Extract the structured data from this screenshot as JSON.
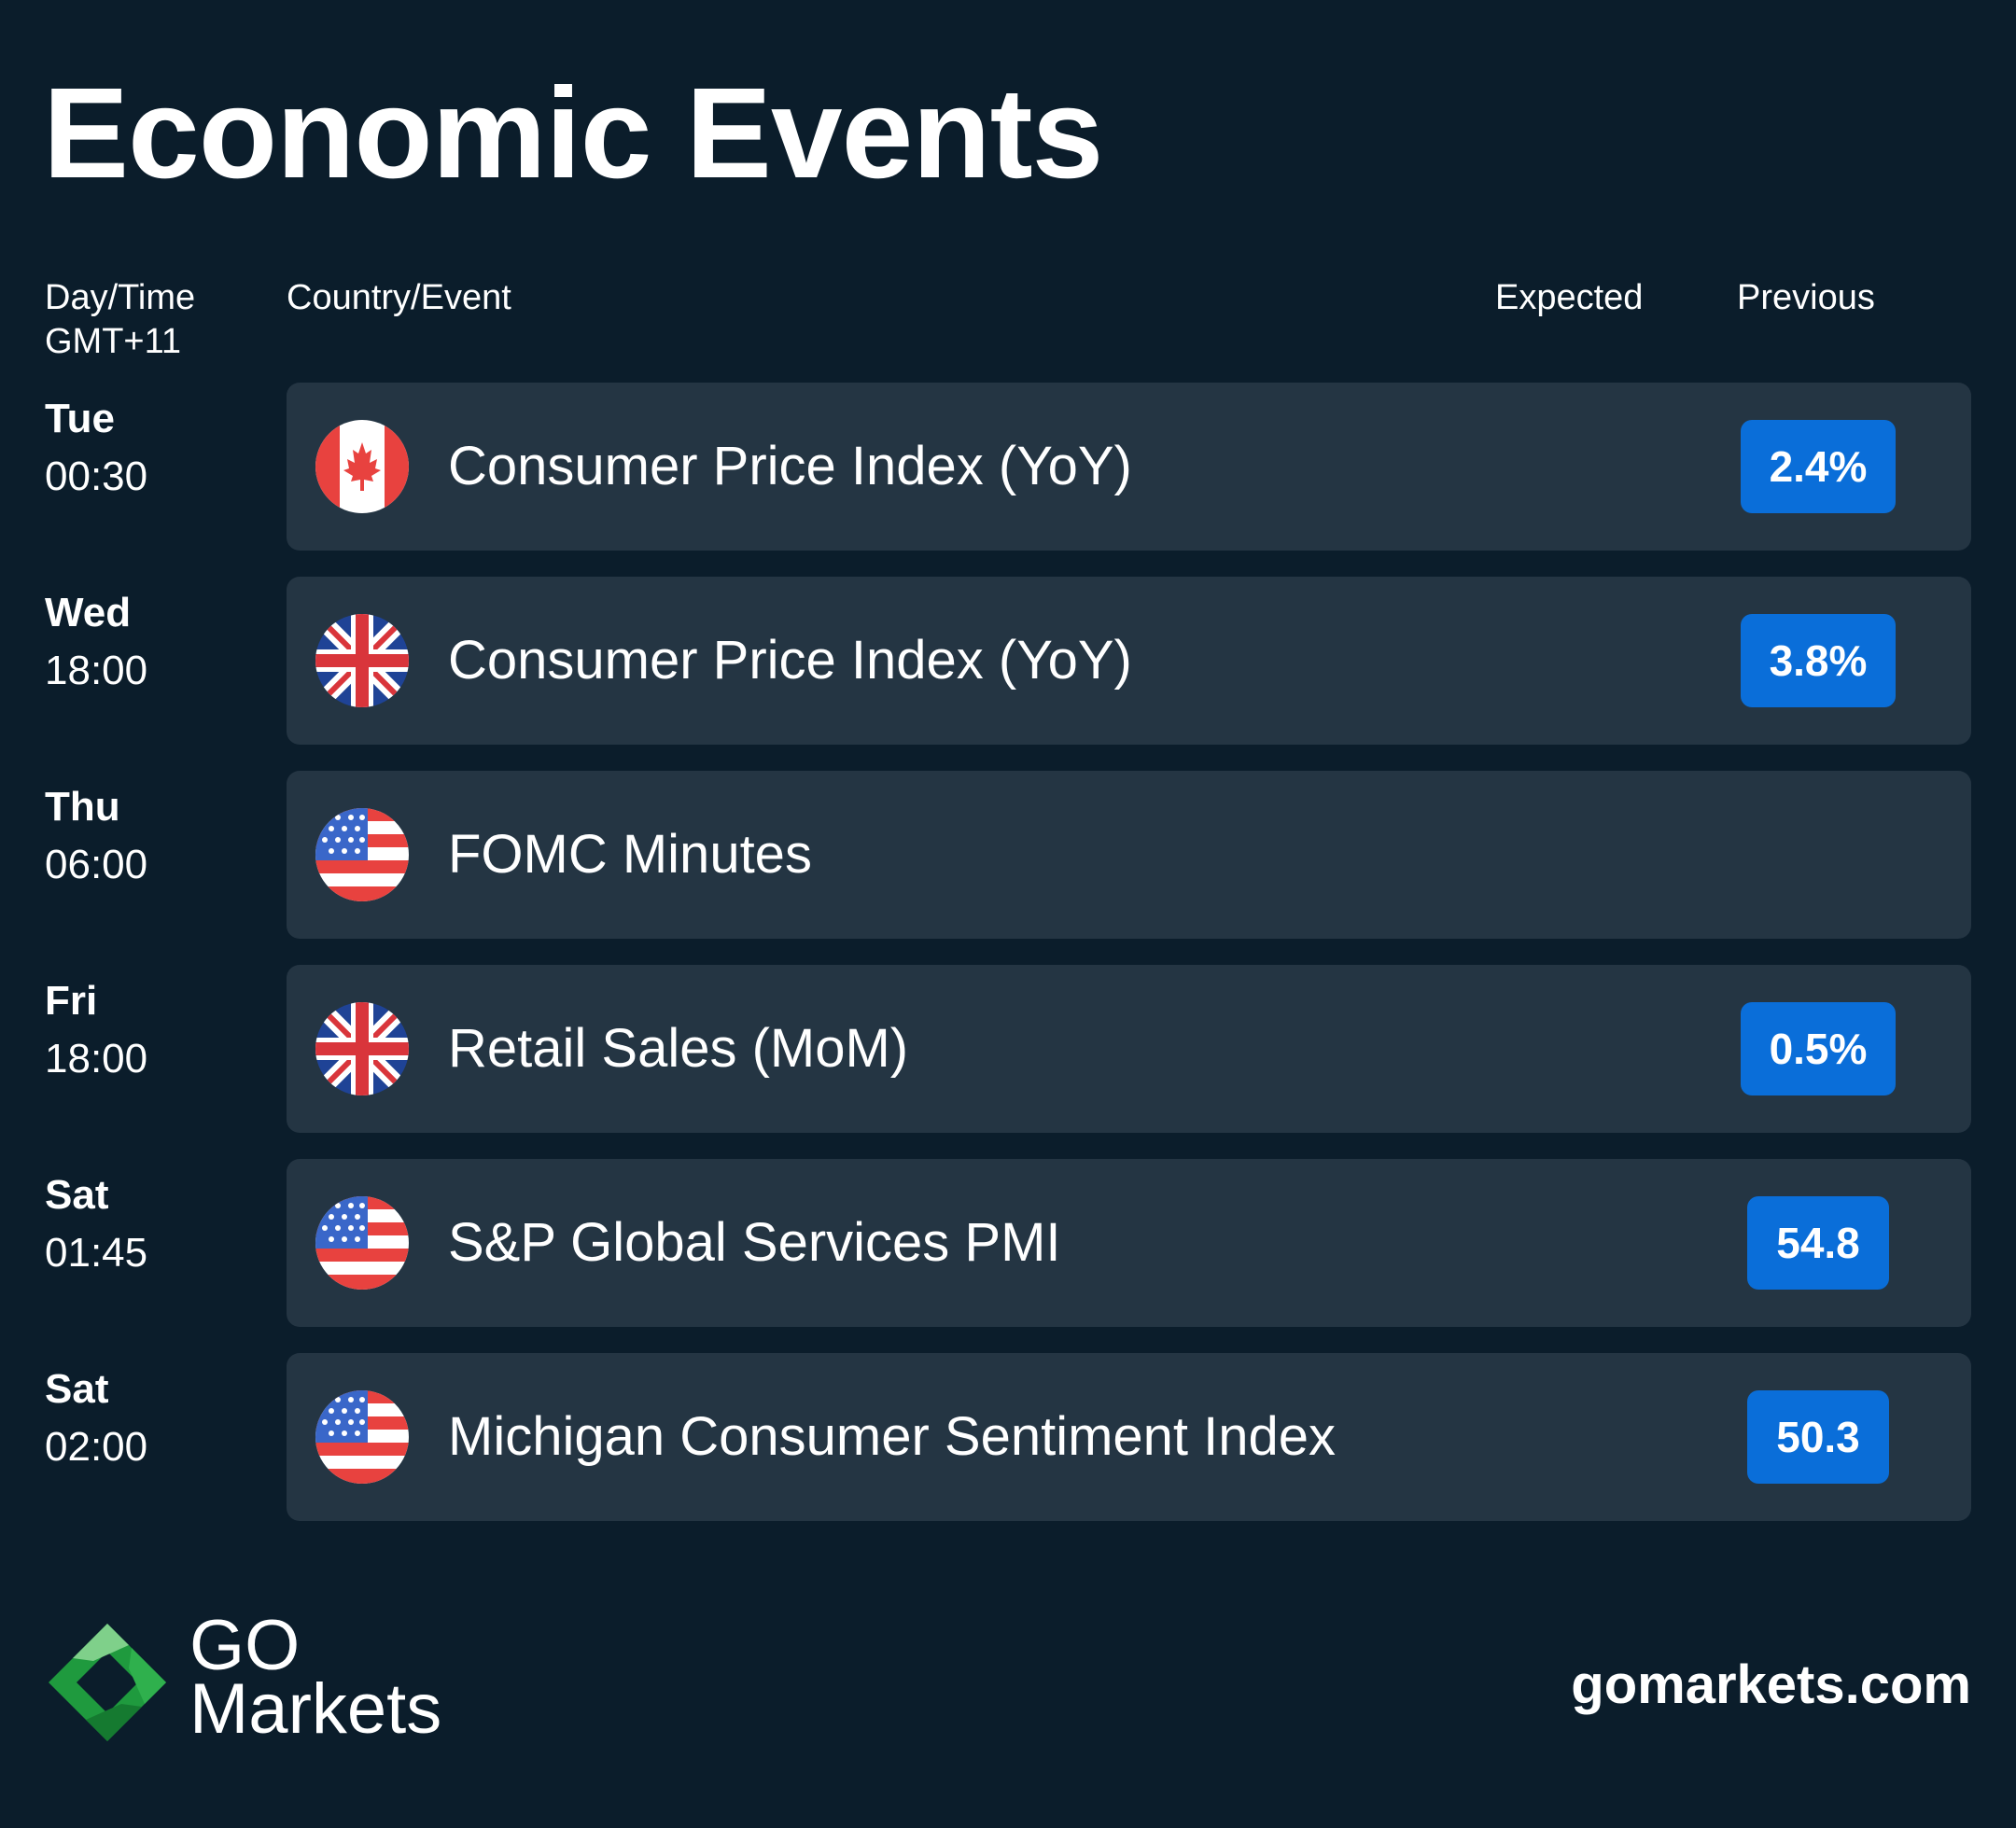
{
  "title": "Economic Events",
  "headers": {
    "day_time_line1": "Day/Time",
    "day_time_line2": "GMT+11",
    "country_event": "Country/Event",
    "expected": "Expected",
    "previous": "Previous"
  },
  "events": [
    {
      "day": "Tue",
      "time": "00:30",
      "country": "Canada",
      "flag_icon": "canada-flag-icon",
      "event": "Consumer Price Index (YoY)",
      "previous": "2.4%"
    },
    {
      "day": "Wed",
      "time": "18:00",
      "country": "United Kingdom",
      "flag_icon": "uk-flag-icon",
      "event": "Consumer Price Index (YoY)",
      "previous": "3.8%"
    },
    {
      "day": "Thu",
      "time": "06:00",
      "country": "United States",
      "flag_icon": "us-flag-icon",
      "event": "FOMC Minutes",
      "previous": ""
    },
    {
      "day": "Fri",
      "time": "18:00",
      "country": "United Kingdom",
      "flag_icon": "uk-flag-icon",
      "event": "Retail Sales (MoM)",
      "previous": "0.5%"
    },
    {
      "day": "Sat",
      "time": "01:45",
      "country": "United States",
      "flag_icon": "us-flag-icon",
      "event": "S&P Global Services PMI",
      "previous": "54.8"
    },
    {
      "day": "Sat",
      "time": "02:00",
      "country": "United States",
      "flag_icon": "us-flag-icon",
      "event": "Michigan Consumer Sentiment Index",
      "previous": "50.3"
    }
  ],
  "footer": {
    "logo_icon": "go-markets-logo-icon",
    "logo_line1": "GO",
    "logo_line2": "Markets",
    "website": "gomarkets.com"
  },
  "colors": {
    "background": "#0b1d2b",
    "card": "#243543",
    "badge": "#0a6ed9",
    "logo_green": "#1f9a3e"
  }
}
